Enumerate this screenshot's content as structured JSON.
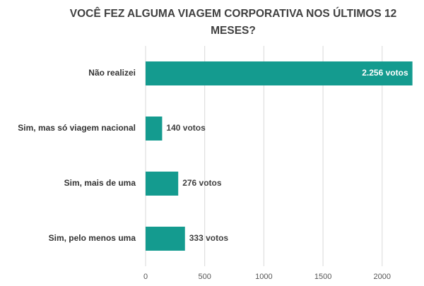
{
  "chart_data": {
    "type": "hbar",
    "title": "VOCÊ FEZ ALGUMA VIAGEM CORPORATIVA NOS ÚLTIMOS 12 MESES?",
    "categories": [
      "Não realizei",
      "Sim, mas só viagem nacional",
      "Sim, mais de uma",
      "Sim, pelo menos uma"
    ],
    "values": [
      2256,
      140,
      276,
      333
    ],
    "value_labels": [
      "2.256 votos",
      "140 votos",
      "276 votos",
      "333 votos"
    ],
    "color": "#149b8f",
    "xlim": [
      0,
      2300
    ],
    "xticks": [
      0,
      500,
      1000,
      1500,
      2000
    ],
    "grid": true
  }
}
